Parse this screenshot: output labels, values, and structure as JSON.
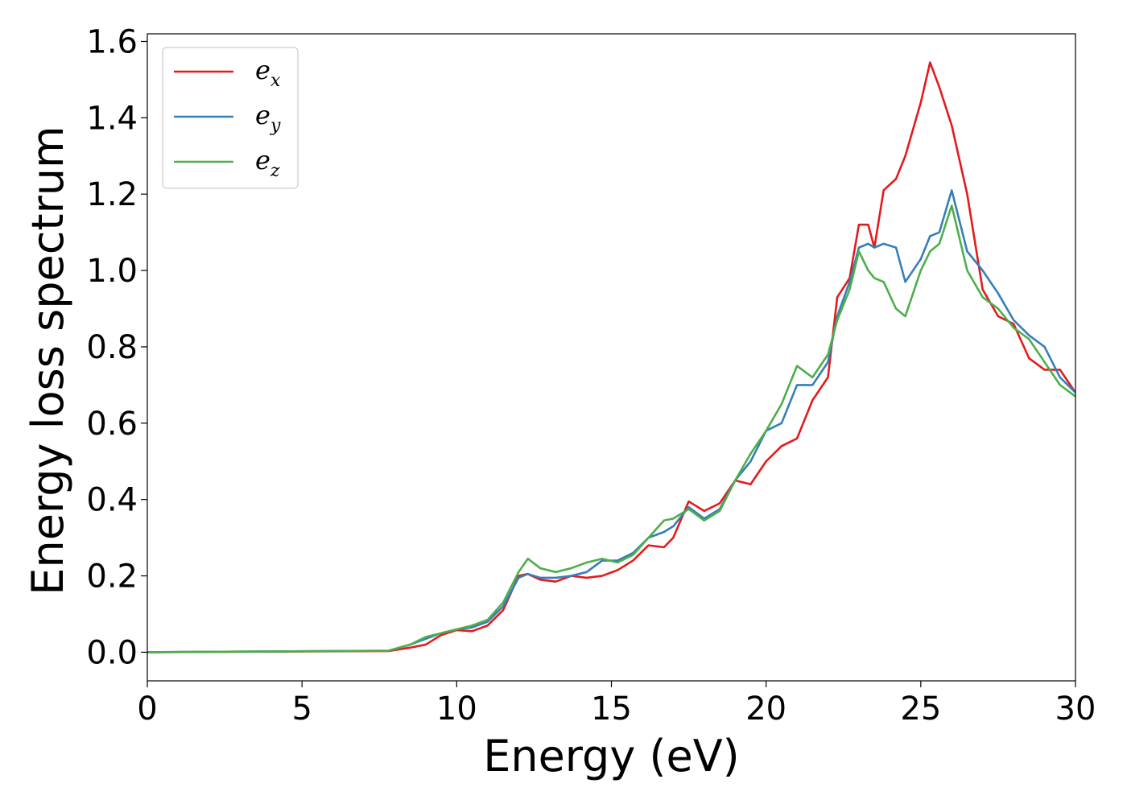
{
  "chart_data": {
    "type": "line",
    "xlabel": "Energy (eV)",
    "ylabel": "Energy loss spectrum",
    "xlim": [
      0,
      30
    ],
    "ylim": [
      -0.075,
      1.62
    ],
    "xticks": [
      0,
      5,
      10,
      15,
      20,
      25,
      30
    ],
    "xtick_labels": [
      "0",
      "5",
      "10",
      "15",
      "20",
      "25",
      "30"
    ],
    "yticks": [
      0.0,
      0.2,
      0.4,
      0.6,
      0.8,
      1.0,
      1.2,
      1.4,
      1.6
    ],
    "ytick_labels": [
      "0.0",
      "0.2",
      "0.4",
      "0.6",
      "0.8",
      "1.0",
      "1.2",
      "1.4",
      "1.6"
    ],
    "grid": false,
    "legend_position": "top-left",
    "series": [
      {
        "name": "e_x",
        "label_base": "e",
        "label_sub": "x",
        "color": "#e41a1c",
        "x": [
          0,
          7.8,
          8.5,
          9.0,
          9.5,
          10.0,
          10.5,
          11.0,
          11.5,
          12.0,
          12.3,
          12.7,
          13.2,
          13.7,
          14.2,
          14.7,
          15.2,
          15.7,
          16.2,
          16.7,
          17.0,
          17.5,
          18.0,
          18.5,
          19.0,
          19.5,
          20.0,
          20.5,
          21.0,
          21.5,
          22.0,
          22.3,
          22.7,
          23.0,
          23.3,
          23.5,
          23.8,
          24.2,
          24.5,
          25.0,
          25.3,
          25.6,
          26.0,
          26.5,
          27.0,
          27.5,
          28.0,
          28.5,
          29.0,
          29.5,
          30.0
        ],
        "y": [
          0.0,
          0.003,
          0.012,
          0.02,
          0.045,
          0.058,
          0.055,
          0.07,
          0.11,
          0.2,
          0.205,
          0.19,
          0.185,
          0.2,
          0.195,
          0.2,
          0.215,
          0.24,
          0.28,
          0.275,
          0.3,
          0.395,
          0.37,
          0.39,
          0.45,
          0.44,
          0.5,
          0.54,
          0.56,
          0.66,
          0.72,
          0.93,
          0.98,
          1.12,
          1.12,
          1.06,
          1.21,
          1.24,
          1.3,
          1.44,
          1.545,
          1.48,
          1.38,
          1.2,
          0.95,
          0.88,
          0.86,
          0.77,
          0.74,
          0.74,
          0.68
        ]
      },
      {
        "name": "e_y",
        "label_base": "e",
        "label_sub": "y",
        "color": "#377eb8",
        "x": [
          0,
          7.8,
          8.5,
          9.0,
          9.5,
          10.0,
          10.5,
          11.0,
          11.5,
          12.0,
          12.3,
          12.7,
          13.2,
          13.7,
          14.2,
          14.7,
          15.2,
          15.7,
          16.2,
          16.7,
          17.0,
          17.5,
          18.0,
          18.5,
          19.0,
          19.5,
          20.0,
          20.5,
          21.0,
          21.5,
          22.0,
          22.3,
          22.7,
          23.0,
          23.3,
          23.5,
          23.8,
          24.2,
          24.5,
          25.0,
          25.3,
          25.6,
          26.0,
          26.5,
          27.0,
          27.5,
          28.0,
          28.5,
          29.0,
          29.5,
          30.0
        ],
        "y": [
          0.0,
          0.004,
          0.02,
          0.035,
          0.05,
          0.06,
          0.065,
          0.08,
          0.12,
          0.195,
          0.205,
          0.195,
          0.195,
          0.2,
          0.21,
          0.24,
          0.24,
          0.26,
          0.3,
          0.315,
          0.33,
          0.38,
          0.35,
          0.375,
          0.45,
          0.5,
          0.58,
          0.6,
          0.7,
          0.7,
          0.76,
          0.88,
          0.97,
          1.06,
          1.07,
          1.06,
          1.07,
          1.06,
          0.97,
          1.03,
          1.09,
          1.1,
          1.21,
          1.05,
          1.0,
          0.94,
          0.87,
          0.83,
          0.8,
          0.72,
          0.68
        ]
      },
      {
        "name": "e_z",
        "label_base": "e",
        "label_sub": "z",
        "color": "#4daf4a",
        "x": [
          0,
          7.8,
          8.5,
          9.0,
          9.5,
          10.0,
          10.5,
          11.0,
          11.5,
          12.0,
          12.3,
          12.7,
          13.2,
          13.7,
          14.2,
          14.7,
          15.2,
          15.7,
          16.2,
          16.7,
          17.0,
          17.5,
          18.0,
          18.5,
          19.0,
          19.5,
          20.0,
          20.5,
          21.0,
          21.5,
          22.0,
          22.3,
          22.7,
          23.0,
          23.3,
          23.5,
          23.8,
          24.2,
          24.5,
          25.0,
          25.3,
          25.6,
          26.0,
          26.5,
          27.0,
          27.5,
          28.0,
          28.5,
          29.0,
          29.5,
          30.0
        ],
        "y": [
          0.0,
          0.004,
          0.02,
          0.04,
          0.05,
          0.06,
          0.07,
          0.085,
          0.13,
          0.21,
          0.245,
          0.22,
          0.21,
          0.22,
          0.235,
          0.245,
          0.235,
          0.255,
          0.3,
          0.345,
          0.35,
          0.375,
          0.345,
          0.37,
          0.45,
          0.52,
          0.58,
          0.65,
          0.75,
          0.72,
          0.78,
          0.87,
          0.95,
          1.05,
          1.0,
          0.98,
          0.97,
          0.9,
          0.88,
          1.0,
          1.05,
          1.07,
          1.17,
          1.0,
          0.93,
          0.9,
          0.85,
          0.82,
          0.76,
          0.7,
          0.67
        ]
      }
    ]
  }
}
